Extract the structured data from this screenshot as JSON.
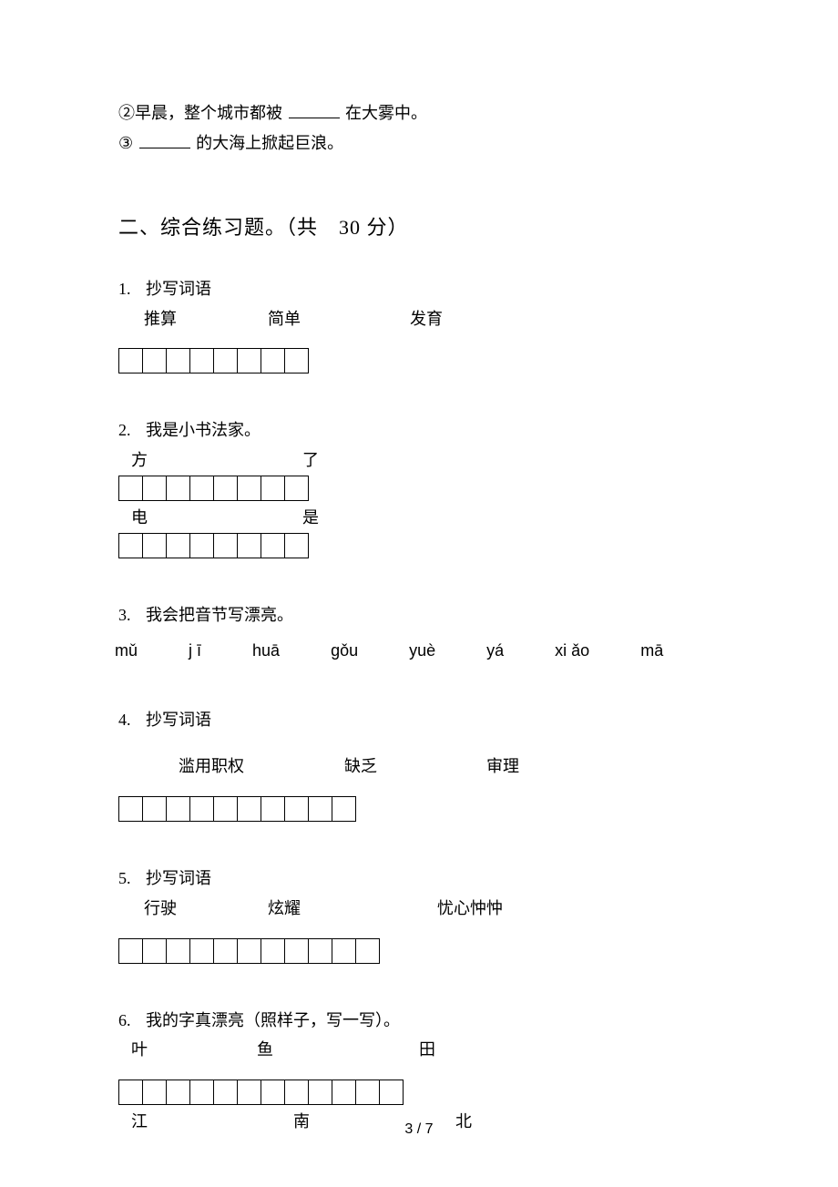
{
  "intro": {
    "line2_prefix": "②早晨，整个城市都被",
    "line2_suffix": "在大雾中。",
    "line3_prefix": "③",
    "line3_suffix": "的大海上掀起巨浪。"
  },
  "section2": {
    "header": "二、综合练习题。（共　30 分）"
  },
  "q1": {
    "num": "1.",
    "title": "抄写词语",
    "words": [
      "推算",
      "简单",
      "发育"
    ],
    "word_gaps": [
      0,
      100,
      120
    ],
    "box_count": 8
  },
  "q2": {
    "num": "2.",
    "title": "我是小书法家。",
    "row1_labels": [
      "方",
      "了"
    ],
    "row1_gaps": [
      14,
      170
    ],
    "row2_labels": [
      "电",
      "是"
    ],
    "row2_gaps": [
      14,
      170
    ],
    "box_count": 8
  },
  "q3": {
    "num": "3.",
    "title": "我会把音节写漂亮。",
    "pinyin": [
      "mǔ",
      "j ī",
      "huā",
      "gǒu",
      "yuè",
      "yá",
      "xi ǎo",
      "mā"
    ]
  },
  "q4": {
    "num": "4.",
    "title": "抄写词语",
    "words": [
      "滥用职权",
      "缺乏",
      "审理"
    ],
    "word_gaps": [
      38,
      110,
      120
    ],
    "box_count": 10
  },
  "q5": {
    "num": "5.",
    "title": "抄写词语",
    "words": [
      "行驶",
      "炫耀",
      "忧心忡忡"
    ],
    "word_gaps": [
      0,
      100,
      150
    ],
    "box_count": 11
  },
  "q6": {
    "num": "6.",
    "title": "我的字真漂亮（照样子，写一写）。",
    "row1_labels": [
      "叶",
      "鱼",
      "田"
    ],
    "row1_gaps": [
      14,
      120,
      160
    ],
    "row2_labels": [
      "江",
      "南",
      "北"
    ],
    "row2_gaps": [
      14,
      160,
      160
    ],
    "box_count": 12
  },
  "page": "3 / 7"
}
